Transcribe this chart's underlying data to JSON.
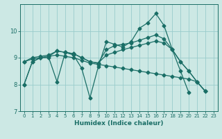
{
  "title": "",
  "xlabel": "Humidex (Indice chaleur)",
  "bg_color": "#cce8e4",
  "grid_color": "#99cccc",
  "line_color": "#1a6e66",
  "xlim": [
    -0.5,
    23.5
  ],
  "ylim": [
    7,
    11
  ],
  "yticks": [
    7,
    8,
    9,
    10
  ],
  "xticks": [
    0,
    1,
    2,
    3,
    4,
    5,
    6,
    7,
    8,
    9,
    10,
    11,
    12,
    13,
    14,
    15,
    16,
    17,
    18,
    19,
    20,
    21,
    22,
    23
  ],
  "s1_x": [
    0,
    1,
    2,
    3,
    4,
    5,
    6,
    7,
    8,
    9,
    10,
    11,
    12,
    13,
    14,
    15,
    16,
    17,
    18,
    19,
    20
  ],
  "s1_y": [
    8.0,
    8.85,
    9.0,
    9.0,
    8.1,
    9.2,
    9.1,
    8.6,
    7.5,
    8.65,
    9.6,
    9.5,
    9.4,
    9.6,
    10.1,
    10.3,
    10.65,
    10.2,
    9.3,
    8.5,
    7.7
  ],
  "s2_x": [
    0,
    1,
    2,
    3,
    4,
    5,
    6,
    7,
    8,
    9,
    10,
    11,
    12,
    13,
    14,
    15,
    16,
    17,
    18,
    19,
    20,
    21,
    22
  ],
  "s2_y": [
    8.85,
    9.0,
    9.05,
    9.1,
    9.25,
    9.2,
    9.15,
    9.0,
    8.85,
    8.8,
    9.3,
    9.45,
    9.5,
    9.55,
    9.65,
    9.75,
    9.85,
    9.7,
    9.3,
    8.85,
    8.5,
    8.1,
    7.75
  ],
  "s3_x": [
    0,
    1,
    2,
    3,
    4,
    5,
    6,
    7,
    8,
    9,
    10,
    11,
    12,
    13,
    14,
    15,
    16,
    17,
    18,
    19,
    20,
    21,
    22
  ],
  "s3_y": [
    8.85,
    8.95,
    9.0,
    9.05,
    9.1,
    9.05,
    9.0,
    8.9,
    8.8,
    8.75,
    8.7,
    8.65,
    8.6,
    8.55,
    8.5,
    8.45,
    8.4,
    8.35,
    8.3,
    8.25,
    8.2,
    8.1,
    7.75
  ],
  "s4_x": [
    0,
    1,
    2,
    3,
    4,
    5,
    6,
    7,
    8,
    9,
    10,
    11,
    12,
    13,
    14,
    15,
    16,
    17,
    18,
    19,
    20,
    21,
    22
  ],
  "s4_y": [
    8.0,
    8.85,
    9.0,
    9.05,
    9.25,
    9.2,
    9.15,
    9.0,
    8.85,
    8.8,
    9.1,
    9.2,
    9.3,
    9.38,
    9.46,
    9.54,
    9.62,
    9.55,
    9.3,
    8.85,
    8.5,
    8.1,
    7.75
  ]
}
